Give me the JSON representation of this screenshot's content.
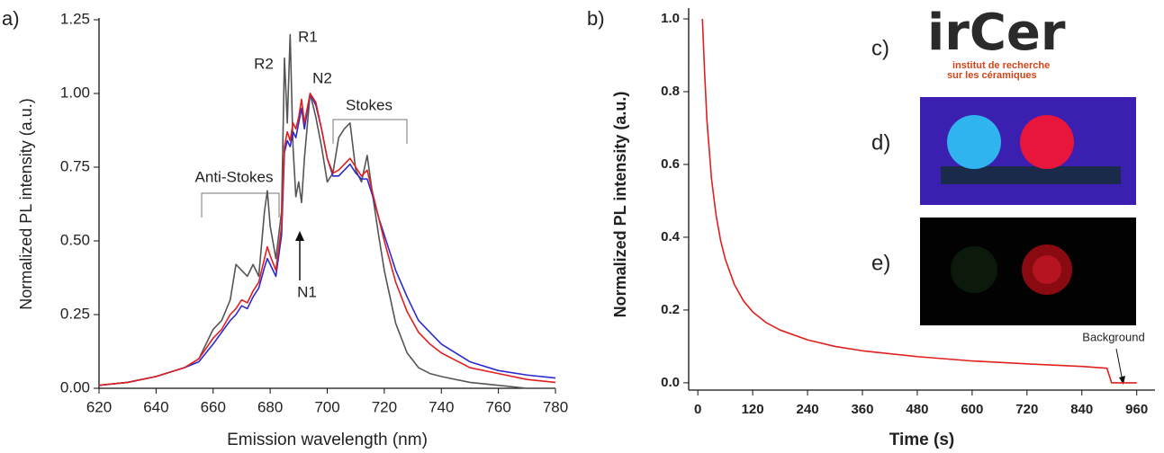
{
  "chart_data": [
    {
      "type": "line",
      "panel_label": "a)",
      "x_label": "Emission wavelength (nm)",
      "y_label": "Normalized PL intensity (a.u.)",
      "xlim": [
        620,
        780
      ],
      "xticks": [
        620,
        640,
        660,
        680,
        700,
        720,
        740,
        760,
        780
      ],
      "ylim": [
        0,
        1.25
      ],
      "yticks": [
        {
          "value": 0,
          "label": "0.00"
        },
        0.25,
        {
          "value": 0.5,
          "label": "0.50"
        },
        0.75,
        {
          "value": 1,
          "label": "1.00"
        },
        1.25
      ],
      "x": [
        620,
        630,
        640,
        650,
        655,
        660,
        663,
        666,
        668,
        670,
        672,
        674,
        676,
        678,
        679,
        680,
        682,
        684,
        685,
        686,
        687,
        688,
        689,
        690,
        691,
        692,
        694,
        696,
        698,
        700,
        702,
        704,
        706,
        708,
        710,
        712,
        714,
        716,
        718,
        720,
        724,
        728,
        732,
        736,
        740,
        750,
        760,
        770,
        780
      ],
      "series": [
        {
          "color": "#555555",
          "values": [
            0.01,
            0.02,
            0.04,
            0.07,
            0.1,
            0.2,
            0.23,
            0.3,
            0.42,
            0.4,
            0.38,
            0.42,
            0.38,
            0.6,
            0.67,
            0.55,
            0.44,
            0.6,
            1.12,
            0.9,
            1.2,
            0.82,
            0.65,
            0.7,
            0.63,
            0.78,
            1.0,
            0.92,
            0.82,
            0.7,
            0.73,
            0.85,
            0.88,
            0.9,
            0.74,
            0.7,
            0.79,
            0.65,
            0.52,
            0.4,
            0.22,
            0.12,
            0.07,
            0.05,
            0.04,
            0.02,
            0.01,
            0.0,
            0.0
          ]
        },
        {
          "color": "#2a2ad0",
          "values": [
            0.01,
            0.02,
            0.04,
            0.07,
            0.09,
            0.15,
            0.19,
            0.23,
            0.25,
            0.28,
            0.27,
            0.31,
            0.34,
            0.41,
            0.44,
            0.42,
            0.38,
            0.52,
            0.8,
            0.84,
            0.82,
            0.87,
            0.85,
            0.9,
            0.95,
            0.88,
            1.0,
            0.96,
            0.88,
            0.78,
            0.72,
            0.72,
            0.74,
            0.76,
            0.73,
            0.71,
            0.71,
            0.65,
            0.58,
            0.52,
            0.4,
            0.31,
            0.23,
            0.19,
            0.15,
            0.09,
            0.06,
            0.045,
            0.035
          ]
        },
        {
          "color": "#e0201e",
          "values": [
            0.01,
            0.02,
            0.04,
            0.07,
            0.1,
            0.17,
            0.2,
            0.25,
            0.27,
            0.3,
            0.29,
            0.33,
            0.36,
            0.44,
            0.48,
            0.45,
            0.4,
            0.55,
            0.82,
            0.87,
            0.84,
            0.9,
            0.88,
            0.92,
            0.98,
            0.9,
            1.0,
            0.97,
            0.88,
            0.78,
            0.73,
            0.74,
            0.76,
            0.78,
            0.75,
            0.72,
            0.74,
            0.66,
            0.58,
            0.5,
            0.36,
            0.26,
            0.19,
            0.15,
            0.12,
            0.07,
            0.05,
            0.03,
            0.02
          ]
        }
      ],
      "annotations": [
        "R2",
        "R1",
        "N2",
        "N1",
        "Anti-Stokes",
        "Stokes"
      ]
    },
    {
      "type": "line",
      "panel_label": "b)",
      "x_label": "Time (s)",
      "y_label": "Normalized PL intensity (a.u.)",
      "xlim": [
        -20,
        1000
      ],
      "xticks": [
        0,
        120,
        240,
        360,
        480,
        600,
        720,
        840,
        960
      ],
      "ylim": [
        -0.02,
        1.0
      ],
      "yticks": [
        {
          "value": 0,
          "label": "0.0"
        },
        0.2,
        0.4,
        0.6,
        0.8,
        {
          "value": 1,
          "label": "1.0"
        }
      ],
      "x": [
        10,
        15,
        20,
        30,
        40,
        50,
        60,
        80,
        100,
        120,
        150,
        180,
        240,
        300,
        360,
        480,
        600,
        720,
        840,
        895,
        905,
        960
      ],
      "series": [
        {
          "color": "#e0201e",
          "values": [
            1.0,
            0.85,
            0.72,
            0.56,
            0.46,
            0.39,
            0.34,
            0.27,
            0.225,
            0.195,
            0.165,
            0.145,
            0.118,
            0.1,
            0.088,
            0.072,
            0.06,
            0.052,
            0.045,
            0.04,
            0,
            0
          ]
        }
      ],
      "annotations": [
        "Background"
      ]
    }
  ],
  "insets": {
    "labels": [
      "c)",
      "d)",
      "e)"
    ],
    "logo_text": "irCer",
    "logo_subtitle": [
      "institut de recherche",
      "sur les céramiques"
    ]
  }
}
